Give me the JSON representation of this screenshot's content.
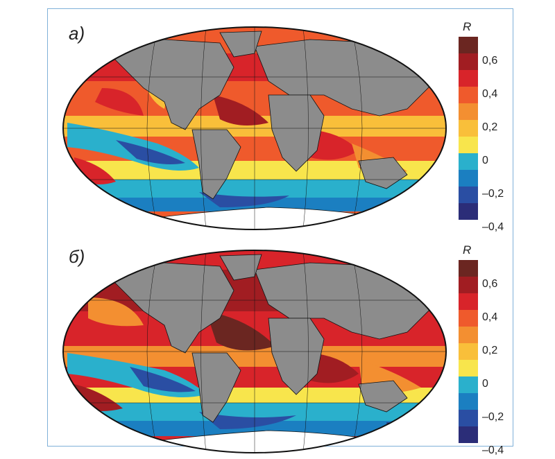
{
  "panels": [
    {
      "label": "а)",
      "cbar_title": "R"
    },
    {
      "label": "б)",
      "cbar_title": "R"
    }
  ],
  "colorbar": {
    "ticks": [
      "0,6",
      "0,4",
      "0,2",
      "0",
      "–0,2",
      "–0,4"
    ],
    "colors": [
      "#6b2621",
      "#a11d22",
      "#d8242a",
      "#ef5a2c",
      "#f38f31",
      "#f9bf3a",
      "#f8e54c",
      "#2ab0cc",
      "#1b7fc1",
      "#2a4ea3",
      "#2b2d78"
    ]
  },
  "legend_colors": {
    "land": "#8c8c8c",
    "ice": "#ffffff",
    "frame": "#7fb0d8"
  }
}
